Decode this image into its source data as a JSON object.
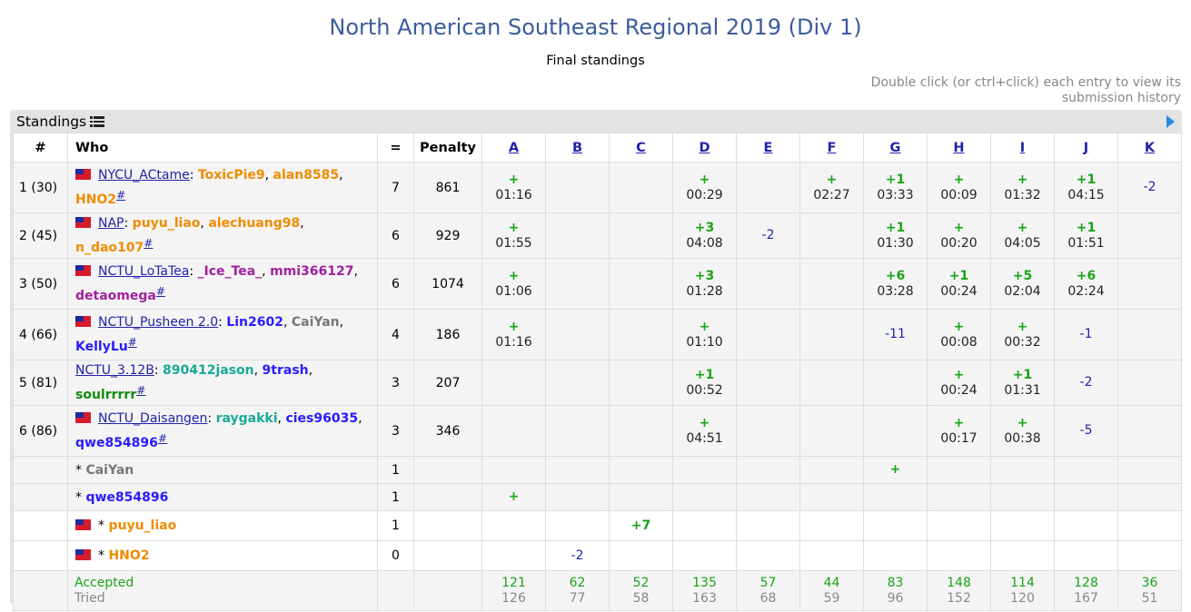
{
  "title": "North American Southeast Regional 2019 (Div 1)",
  "subtitle": "Final standings",
  "hint": "Double click (or ctrl+click) each entry to view its submission history",
  "panel": {
    "label": "Standings",
    "icon": "list-icon",
    "expand_icon": "play-icon"
  },
  "headers": {
    "rank": "#",
    "who": "Who",
    "solved": "=",
    "penalty": "Penalty"
  },
  "problems": [
    "A",
    "B",
    "C",
    "D",
    "E",
    "F",
    "G",
    "H",
    "I",
    "J",
    "K"
  ],
  "teams": [
    {
      "rank": "1 (30)",
      "flag": true,
      "name": "NYCU_ACtame",
      "members": [
        {
          "n": "ToxicPie9",
          "c": "orange"
        },
        {
          "n": "alan8585",
          "c": "orange"
        },
        {
          "n": "HNO2",
          "c": "orange"
        }
      ],
      "solved": "7",
      "penalty": "861",
      "cells": [
        [
          "+",
          "01:16"
        ],
        null,
        null,
        [
          "+",
          "00:29"
        ],
        null,
        [
          "+",
          "02:27"
        ],
        [
          "+1",
          "03:33"
        ],
        [
          "+",
          "00:09"
        ],
        [
          "+",
          "01:32"
        ],
        [
          "+1",
          "04:15"
        ],
        [
          "-2",
          ""
        ]
      ]
    },
    {
      "rank": "2 (45)",
      "flag": true,
      "name": "NAP",
      "members": [
        {
          "n": "puyu_liao",
          "c": "orange"
        },
        {
          "n": "alechuang98",
          "c": "orange"
        },
        {
          "n": "n_dao107",
          "c": "orange"
        }
      ],
      "solved": "6",
      "penalty": "929",
      "cells": [
        [
          "+",
          "01:55"
        ],
        null,
        null,
        [
          "+3",
          "04:08"
        ],
        [
          "-2",
          ""
        ],
        null,
        [
          "+1",
          "01:30"
        ],
        [
          "+",
          "00:20"
        ],
        [
          "+",
          "04:05"
        ],
        [
          "+1",
          "01:51"
        ],
        null
      ]
    },
    {
      "rank": "3 (50)",
      "flag": true,
      "name": "NCTU_LoTaTea",
      "members": [
        {
          "n": "_Ice_Tea_",
          "c": "purple"
        },
        {
          "n": "mmi366127",
          "c": "purple"
        },
        {
          "n": "detaomega",
          "c": "purple"
        }
      ],
      "solved": "6",
      "penalty": "1074",
      "cells": [
        [
          "+",
          "01:06"
        ],
        null,
        null,
        [
          "+3",
          "01:28"
        ],
        null,
        null,
        [
          "+6",
          "03:28"
        ],
        [
          "+1",
          "00:24"
        ],
        [
          "+5",
          "02:04"
        ],
        [
          "+6",
          "02:24"
        ],
        null
      ]
    },
    {
      "rank": "4 (66)",
      "flag": true,
      "name": "NCTU_Pusheen 2.0",
      "members": [
        {
          "n": "Lin2602",
          "c": "blue"
        },
        {
          "n": "CaiYan",
          "c": "gray"
        },
        {
          "n": "KellyLu",
          "c": "blue"
        }
      ],
      "solved": "4",
      "penalty": "186",
      "cells": [
        [
          "+",
          "01:16"
        ],
        null,
        null,
        [
          "+",
          "01:10"
        ],
        null,
        null,
        [
          "-11",
          ""
        ],
        [
          "+",
          "00:08"
        ],
        [
          "+",
          "00:32"
        ],
        [
          "-1",
          ""
        ],
        null
      ]
    },
    {
      "rank": "5 (81)",
      "flag": false,
      "name": "NCTU_3.12B",
      "members": [
        {
          "n": "890412jason",
          "c": "teal"
        },
        {
          "n": "9trash",
          "c": "blue"
        },
        {
          "n": "soulrrrrr",
          "c": "green"
        }
      ],
      "solved": "3",
      "penalty": "207",
      "cells": [
        null,
        null,
        null,
        [
          "+1",
          "00:52"
        ],
        null,
        null,
        null,
        [
          "+",
          "00:24"
        ],
        [
          "+1",
          "01:31"
        ],
        [
          "-2",
          ""
        ],
        null
      ]
    },
    {
      "rank": "6 (86)",
      "flag": true,
      "name": "NCTU_Daisangen",
      "members": [
        {
          "n": "raygakki",
          "c": "teal"
        },
        {
          "n": "cies96035",
          "c": "blue"
        },
        {
          "n": "qwe854896",
          "c": "blue"
        }
      ],
      "solved": "3",
      "penalty": "346",
      "cells": [
        null,
        null,
        null,
        [
          "+",
          "04:51"
        ],
        null,
        null,
        null,
        [
          "+",
          "00:17"
        ],
        [
          "+",
          "00:38"
        ],
        [
          "-5",
          ""
        ],
        null
      ]
    }
  ],
  "individuals": [
    {
      "flag": false,
      "name": "CaiYan",
      "c": "gray",
      "solved": "1",
      "cells": [
        null,
        null,
        null,
        null,
        null,
        null,
        [
          "+",
          ""
        ],
        null,
        null,
        null,
        null
      ]
    },
    {
      "flag": false,
      "name": "qwe854896",
      "c": "blue",
      "solved": "1",
      "cells": [
        [
          "+",
          ""
        ],
        null,
        null,
        null,
        null,
        null,
        null,
        null,
        null,
        null,
        null
      ]
    },
    {
      "flag": true,
      "name": "puyu_liao",
      "c": "orange",
      "solved": "1",
      "cells": [
        null,
        null,
        [
          "+7",
          ""
        ],
        null,
        null,
        null,
        null,
        null,
        null,
        null,
        null
      ]
    },
    {
      "flag": true,
      "name": "HNO2",
      "c": "orange",
      "solved": "0",
      "cells": [
        null,
        [
          "-2",
          ""
        ],
        null,
        null,
        null,
        null,
        null,
        null,
        null,
        null,
        null
      ]
    }
  ],
  "footer": {
    "accepted_label": "Accepted",
    "tried_label": "Tried",
    "accepted": [
      "121",
      "62",
      "52",
      "135",
      "57",
      "44",
      "83",
      "148",
      "114",
      "128",
      "36"
    ],
    "tried": [
      "126",
      "77",
      "58",
      "163",
      "68",
      "59",
      "96",
      "152",
      "120",
      "167",
      "51"
    ]
  },
  "colors": {
    "title": "#3b5c9c",
    "accepted": "#1aa31a",
    "link": "#2222aa"
  }
}
